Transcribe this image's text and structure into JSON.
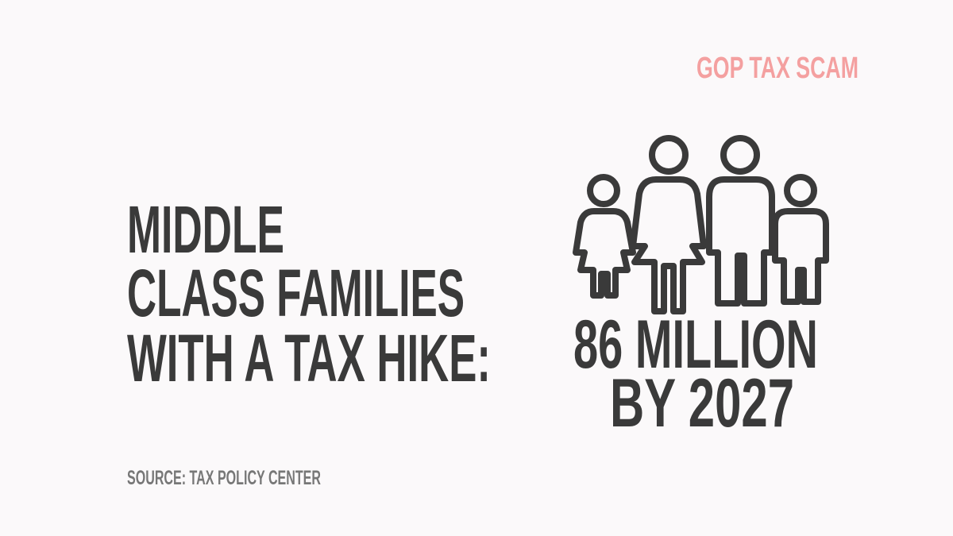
{
  "brand": "GOP TAX SCAM",
  "headline": {
    "lines": [
      "MIDDLE",
      "CLASS FAMILIES",
      "WITH A TAX HIKE:"
    ]
  },
  "stat": {
    "lines": [
      "86 MILLION",
      "BY 2027"
    ]
  },
  "source": "SOURCE: TAX POLICY CENTER"
}
